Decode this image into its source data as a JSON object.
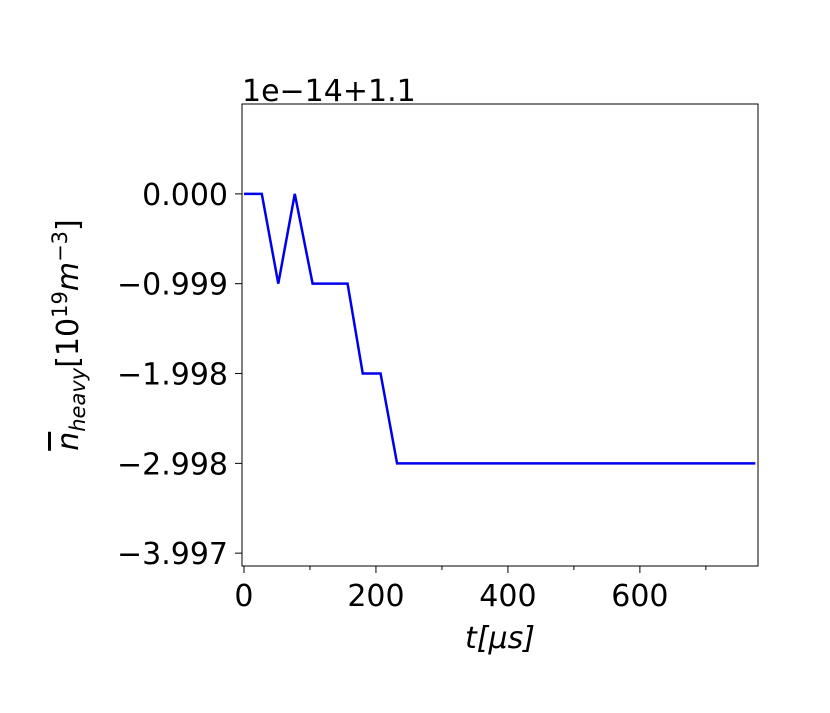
{
  "chart_data": {
    "type": "line",
    "offset_text": "1e−14+1.1",
    "xlabel": "t[μs]",
    "ylabel": {
      "base": "n",
      "sub": "heavy",
      "open": "[10",
      "sup1": "19",
      "unit": "m",
      "sup2": "−3",
      "close": "]"
    },
    "x": [
      0,
      27,
      52,
      77,
      104,
      157,
      180,
      207,
      232,
      775
    ],
    "series": [
      {
        "color": "#0000ee",
        "values": [
          0,
          0,
          -0.999,
          0,
          -0.999,
          -0.999,
          -1.998,
          -1.998,
          -2.998,
          -2.998
        ]
      }
    ],
    "xlim": [
      -3,
      779
    ],
    "xticks": [
      0,
      200,
      400,
      600
    ],
    "xminorticks": [
      100,
      300,
      500,
      700
    ],
    "ylim": [
      -4.14,
      1.0
    ],
    "yticks": [
      {
        "value": 0,
        "label": "0.000"
      },
      {
        "value": -0.999,
        "label": "−0.999"
      },
      {
        "value": -1.998,
        "label": "−1.998"
      },
      {
        "value": -2.998,
        "label": "−2.998"
      },
      {
        "value": -3.997,
        "label": "−3.997"
      }
    ]
  }
}
